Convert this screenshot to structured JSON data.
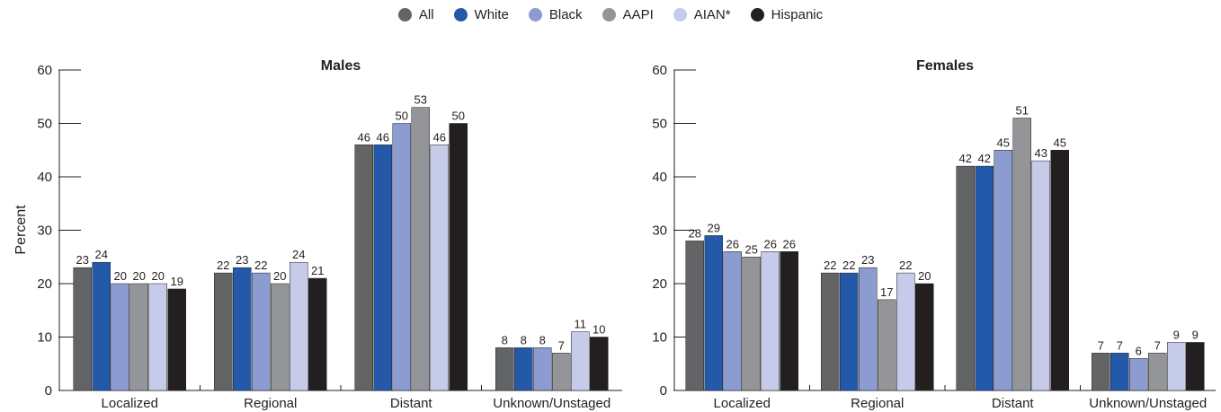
{
  "legend": [
    {
      "name": "All",
      "color": "#636466"
    },
    {
      "name": "White",
      "color": "#2359a8"
    },
    {
      "name": "Black",
      "color": "#8c9bd0"
    },
    {
      "name": "AAPI",
      "color": "#939598"
    },
    {
      "name": "AIAN*",
      "color": "#c5cbe8"
    },
    {
      "name": "Hispanic",
      "color": "#231f20"
    }
  ],
  "ylabel": "Percent",
  "chart_data": [
    {
      "type": "bar",
      "title": "Males",
      "categories": [
        "Localized",
        "Regional",
        "Distant",
        "Unknown/Unstaged"
      ],
      "ylim": [
        0,
        60
      ],
      "yticks": [
        0,
        10,
        20,
        30,
        40,
        50,
        60
      ],
      "series": [
        {
          "name": "All",
          "values": [
            23,
            22,
            46,
            8
          ]
        },
        {
          "name": "White",
          "values": [
            24,
            23,
            46,
            8
          ]
        },
        {
          "name": "Black",
          "values": [
            20,
            22,
            50,
            8
          ]
        },
        {
          "name": "AAPI",
          "values": [
            20,
            20,
            53,
            7
          ]
        },
        {
          "name": "AIAN*",
          "values": [
            20,
            24,
            46,
            11
          ]
        },
        {
          "name": "Hispanic",
          "values": [
            19,
            21,
            50,
            10
          ]
        }
      ]
    },
    {
      "type": "bar",
      "title": "Females",
      "categories": [
        "Localized",
        "Regional",
        "Distant",
        "Unknown/Unstaged"
      ],
      "ylim": [
        0,
        60
      ],
      "yticks": [
        0,
        10,
        20,
        30,
        40,
        50,
        60
      ],
      "series": [
        {
          "name": "All",
          "values": [
            28,
            22,
            42,
            7
          ]
        },
        {
          "name": "White",
          "values": [
            29,
            22,
            42,
            7
          ]
        },
        {
          "name": "Black",
          "values": [
            26,
            23,
            45,
            6
          ]
        },
        {
          "name": "AAPI",
          "values": [
            25,
            17,
            51,
            7
          ]
        },
        {
          "name": "AIAN*",
          "values": [
            26,
            22,
            43,
            9
          ]
        },
        {
          "name": "Hispanic",
          "values": [
            26,
            20,
            45,
            9
          ]
        }
      ]
    }
  ]
}
